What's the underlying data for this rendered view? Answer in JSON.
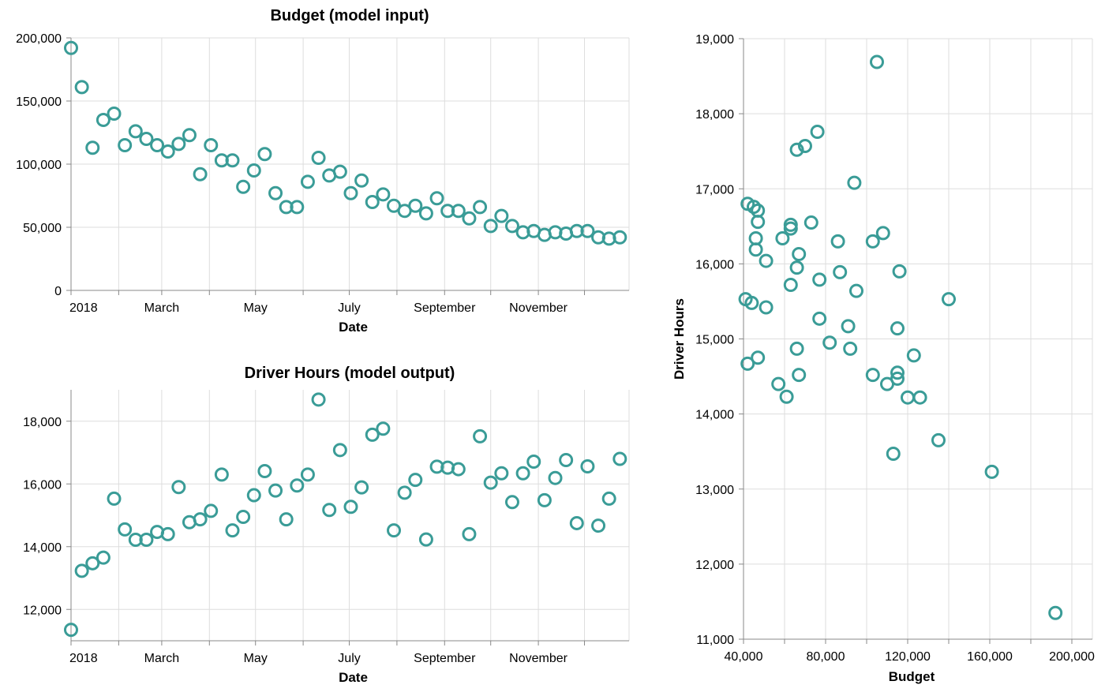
{
  "colors": {
    "point": "#3a9c97"
  },
  "chart_data": [
    {
      "type": "scatter",
      "title": "Budget (model input)",
      "xlabel": "Date",
      "ylabel": "",
      "x_ticks": [
        "2018",
        "March",
        "May",
        "July",
        "September",
        "November"
      ],
      "y_ticks": [
        "0",
        "50,000",
        "100,000",
        "150,000",
        "200,000"
      ],
      "ylim": [
        0,
        200000
      ],
      "grid": true,
      "x": [
        "2018-01-01",
        "2018-01-08",
        "2018-01-15",
        "2018-01-22",
        "2018-01-29",
        "2018-02-05",
        "2018-02-12",
        "2018-02-19",
        "2018-02-26",
        "2018-03-05",
        "2018-03-12",
        "2018-03-19",
        "2018-03-26",
        "2018-04-02",
        "2018-04-09",
        "2018-04-16",
        "2018-04-23",
        "2018-04-30",
        "2018-05-07",
        "2018-05-14",
        "2018-05-21",
        "2018-05-28",
        "2018-06-04",
        "2018-06-11",
        "2018-06-18",
        "2018-06-25",
        "2018-07-02",
        "2018-07-09",
        "2018-07-16",
        "2018-07-23",
        "2018-07-30",
        "2018-08-06",
        "2018-08-13",
        "2018-08-20",
        "2018-08-27",
        "2018-09-03",
        "2018-09-10",
        "2018-09-17",
        "2018-09-24",
        "2018-10-01",
        "2018-10-08",
        "2018-10-15",
        "2018-10-22",
        "2018-10-29",
        "2018-11-05",
        "2018-11-12",
        "2018-11-19",
        "2018-11-26",
        "2018-12-03",
        "2018-12-10",
        "2018-12-17",
        "2018-12-24"
      ],
      "y": [
        192000,
        161000,
        113000,
        135000,
        140000,
        115000,
        126000,
        120000,
        115000,
        110000,
        116000,
        123000,
        92000,
        115000,
        103000,
        103000,
        82000,
        95000,
        108000,
        77000,
        66000,
        66000,
        86000,
        105000,
        91000,
        94000,
        77000,
        87000,
        70000,
        76000,
        67000,
        63000,
        67000,
        61000,
        73000,
        63000,
        63000,
        57000,
        66000,
        51000,
        59000,
        51000,
        46000,
        47000,
        44000,
        46000,
        45000,
        47000,
        47000,
        42000,
        41000,
        42000
      ]
    },
    {
      "type": "scatter",
      "title": "Driver Hours (model output)",
      "xlabel": "Date",
      "ylabel": "",
      "x_ticks": [
        "2018",
        "March",
        "May",
        "July",
        "September",
        "November"
      ],
      "y_ticks": [
        "12,000",
        "14,000",
        "16,000",
        "18,000"
      ],
      "ylim": [
        11000,
        19000
      ],
      "grid": true,
      "x": [
        "2018-01-01",
        "2018-01-08",
        "2018-01-15",
        "2018-01-22",
        "2018-01-29",
        "2018-02-05",
        "2018-02-12",
        "2018-02-19",
        "2018-02-26",
        "2018-03-05",
        "2018-03-12",
        "2018-03-19",
        "2018-03-26",
        "2018-04-02",
        "2018-04-09",
        "2018-04-16",
        "2018-04-23",
        "2018-04-30",
        "2018-05-07",
        "2018-05-14",
        "2018-05-21",
        "2018-05-28",
        "2018-06-04",
        "2018-06-11",
        "2018-06-18",
        "2018-06-25",
        "2018-07-02",
        "2018-07-09",
        "2018-07-16",
        "2018-07-23",
        "2018-07-30",
        "2018-08-06",
        "2018-08-13",
        "2018-08-20",
        "2018-08-27",
        "2018-09-03",
        "2018-09-10",
        "2018-09-17",
        "2018-09-24",
        "2018-10-01",
        "2018-10-08",
        "2018-10-15",
        "2018-10-22",
        "2018-10-29",
        "2018-11-05",
        "2018-11-12",
        "2018-11-19",
        "2018-11-26",
        "2018-12-03",
        "2018-12-10",
        "2018-12-17",
        "2018-12-24"
      ],
      "y": [
        11350,
        13230,
        13470,
        13650,
        15530,
        14550,
        14220,
        14220,
        14470,
        14400,
        15900,
        14780,
        14870,
        15140,
        16300,
        14520,
        14950,
        15640,
        16410,
        15790,
        14870,
        15950,
        16300,
        18690,
        15170,
        17080,
        15270,
        15890,
        17570,
        17760,
        14520,
        15720,
        16130,
        14230,
        16550,
        16520,
        16470,
        14400,
        17520,
        16040,
        16340,
        15420,
        16340,
        16710,
        15480,
        16190,
        16760,
        14750,
        16560,
        14670,
        15530,
        16800
      ]
    },
    {
      "type": "scatter",
      "title": "",
      "xlabel": "Budget",
      "ylabel": "Driver Hours",
      "x_ticks": [
        "40,000",
        "80,000",
        "120,000",
        "160,000",
        "200,000"
      ],
      "y_ticks": [
        "11,000",
        "12,000",
        "13,000",
        "14,000",
        "15,000",
        "16,000",
        "17,000",
        "18,000",
        "19,000"
      ],
      "xlim": [
        40000,
        210000
      ],
      "ylim": [
        11000,
        19000
      ],
      "grid": true,
      "x": [
        192000,
        161000,
        113000,
        135000,
        140000,
        115000,
        126000,
        120000,
        115000,
        110000,
        116000,
        123000,
        92000,
        115000,
        103000,
        103000,
        82000,
        95000,
        108000,
        77000,
        66000,
        66000,
        86000,
        105000,
        91000,
        94000,
        77000,
        87000,
        70000,
        76000,
        67000,
        63000,
        67000,
        61000,
        73000,
        63000,
        63000,
        57000,
        66000,
        51000,
        59000,
        51000,
        46000,
        47000,
        44000,
        46000,
        45000,
        47000,
        47000,
        42000,
        41000,
        42000
      ],
      "y": [
        11350,
        13230,
        13470,
        13650,
        15530,
        14550,
        14220,
        14220,
        14470,
        14400,
        15900,
        14780,
        14870,
        15140,
        16300,
        14520,
        14950,
        15640,
        16410,
        15790,
        14870,
        15950,
        16300,
        18690,
        15170,
        17080,
        15270,
        15890,
        17570,
        17760,
        14520,
        15720,
        16130,
        14230,
        16550,
        16520,
        16470,
        14400,
        17520,
        16040,
        16340,
        15420,
        16340,
        16710,
        15480,
        16190,
        16760,
        14750,
        16560,
        14670,
        15530,
        16800
      ]
    }
  ]
}
